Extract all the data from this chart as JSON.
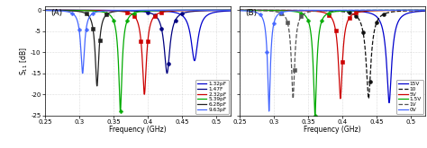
{
  "panel_A": {
    "label": "(A)",
    "curves": [
      {
        "legend": "1.32pF",
        "color": "#0000CC",
        "linestyle": "-",
        "marker": "none",
        "f0": 0.468,
        "depth": -12,
        "Q": 55
      },
      {
        "legend": "1.47F",
        "color": "#000080",
        "linestyle": "-",
        "marker": "o",
        "f0": 0.428,
        "depth": -15,
        "Q": 55
      },
      {
        "legend": "2.32pF",
        "color": "#CC0000",
        "linestyle": "-",
        "marker": "s",
        "f0": 0.395,
        "depth": -20,
        "Q": 60
      },
      {
        "legend": "5.39pF",
        "color": "#00AA00",
        "linestyle": "-",
        "marker": "P",
        "f0": 0.36,
        "depth": -24,
        "Q": 60
      },
      {
        "legend": "6.28pF",
        "color": "#222222",
        "linestyle": "-",
        "marker": "s",
        "f0": 0.326,
        "depth": -18,
        "Q": 60
      },
      {
        "legend": "9.63pF",
        "color": "#4466FF",
        "linestyle": "-",
        "marker": "P",
        "f0": 0.305,
        "depth": -15,
        "Q": 60
      }
    ],
    "xlabel": "Frequency (GHz)",
    "ylabel": "S$_{11}$ [dB]",
    "xlim": [
      0.25,
      0.52
    ],
    "ylim": [
      -25,
      1
    ],
    "xticks": [
      0.25,
      0.3,
      0.35,
      0.4,
      0.45,
      0.5
    ],
    "yticks": [
      0,
      -5,
      -10,
      -15,
      -20,
      -25
    ]
  },
  "panel_B": {
    "label": "(B)",
    "curves": [
      {
        "legend": "15V",
        "color": "#0000CC",
        "linestyle": "-",
        "marker": "none",
        "f0": 0.468,
        "depth": -22,
        "Q": 55
      },
      {
        "legend": "10",
        "color": "#111111",
        "linestyle": "--",
        "marker": "o",
        "f0": 0.438,
        "depth": -21,
        "Q": 55
      },
      {
        "legend": "5V",
        "color": "#CC0000",
        "linestyle": "-",
        "marker": "s",
        "f0": 0.397,
        "depth": -21,
        "Q": 60
      },
      {
        "legend": "1.5V",
        "color": "#00AA00",
        "linestyle": "-",
        "marker": "P",
        "f0": 0.36,
        "depth": -25,
        "Q": 60
      },
      {
        "legend": "1V",
        "color": "#555555",
        "linestyle": "--",
        "marker": "s",
        "f0": 0.328,
        "depth": -21,
        "Q": 60
      },
      {
        "legend": "0V",
        "color": "#4466FF",
        "linestyle": "-",
        "marker": "P",
        "f0": 0.293,
        "depth": -24,
        "Q": 60
      }
    ],
    "xlabel": "Frequency (GHz)",
    "ylabel": "",
    "xlim": [
      0.25,
      0.52
    ],
    "ylim": [
      -25,
      1
    ],
    "xticks": [
      0.25,
      0.3,
      0.35,
      0.4,
      0.45,
      0.5
    ],
    "yticks": [
      0,
      -5,
      -10,
      -15,
      -20,
      -25
    ]
  },
  "fig_width": 4.74,
  "fig_height": 1.65,
  "dpi": 100
}
